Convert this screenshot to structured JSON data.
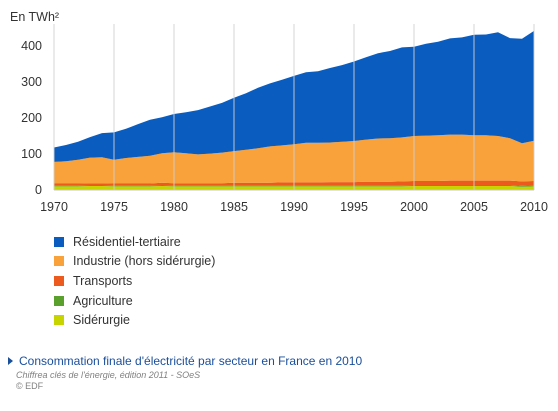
{
  "chart_data": {
    "type": "area",
    "stacked": true,
    "unit_label": "En TWh²",
    "x": [
      1970,
      1971,
      1972,
      1973,
      1974,
      1975,
      1976,
      1977,
      1978,
      1979,
      1980,
      1981,
      1982,
      1983,
      1984,
      1985,
      1986,
      1987,
      1988,
      1989,
      1990,
      1991,
      1992,
      1993,
      1994,
      1995,
      1996,
      1997,
      1998,
      1999,
      2000,
      2001,
      2002,
      2003,
      2004,
      2005,
      2006,
      2007,
      2008,
      2009,
      2010
    ],
    "xticks": [
      1970,
      1975,
      1980,
      1985,
      1990,
      1995,
      2000,
      2005,
      2010
    ],
    "yticks": [
      0,
      100,
      200,
      300,
      400
    ],
    "ylim": [
      0,
      450
    ],
    "xlim": [
      1970,
      2010
    ],
    "grid": "vertical",
    "series": [
      {
        "name": "Sidérurgie",
        "color": "#c8d400",
        "values": [
          10,
          10,
          10,
          11,
          11,
          10,
          10,
          10,
          10,
          11,
          10,
          10,
          10,
          10,
          10,
          10,
          10,
          10,
          10,
          10,
          10,
          10,
          10,
          10,
          10,
          10,
          10,
          10,
          10,
          10,
          11,
          11,
          11,
          11,
          11,
          11,
          11,
          11,
          11,
          9,
          10
        ]
      },
      {
        "name": "Agriculture",
        "color": "#5aa02c",
        "values": [
          3,
          3,
          3,
          3,
          3,
          3,
          3,
          3,
          3,
          3,
          3,
          3,
          3,
          3,
          3,
          3,
          3,
          3,
          3,
          3,
          3,
          3,
          3,
          3,
          3,
          3,
          3,
          3,
          3,
          3,
          3,
          3,
          3,
          3,
          3,
          3,
          3,
          3,
          3,
          3,
          3
        ]
      },
      {
        "name": "Transports",
        "color": "#ec5a1e",
        "values": [
          5,
          5,
          5,
          5,
          5,
          5,
          5,
          5,
          5,
          6,
          6,
          6,
          6,
          6,
          6,
          7,
          7,
          7,
          7,
          8,
          8,
          8,
          8,
          9,
          9,
          9,
          10,
          10,
          10,
          11,
          11,
          11,
          11,
          12,
          12,
          12,
          12,
          12,
          12,
          12,
          12
        ]
      },
      {
        "name": "Industrie (hors sidérurgie)",
        "color": "#f9a13a",
        "values": [
          60,
          62,
          66,
          71,
          72,
          66,
          71,
          74,
          77,
          82,
          86,
          83,
          80,
          82,
          85,
          88,
          92,
          96,
          101,
          103,
          106,
          110,
          110,
          110,
          112,
          114,
          117,
          120,
          121,
          122,
          125,
          126,
          127,
          128,
          128,
          126,
          126,
          124,
          118,
          106,
          112
        ]
      },
      {
        "name": "Résidentiel-tertiaire",
        "color": "#0a5cbf",
        "values": [
          40,
          45,
          50,
          57,
          67,
          76,
          81,
          91,
          100,
          100,
          106,
          114,
          123,
          131,
          138,
          148,
          157,
          168,
          175,
          182,
          190,
          196,
          199,
          207,
          213,
          221,
          229,
          237,
          242,
          250,
          248,
          255,
          260,
          267,
          270,
          279,
          280,
          288,
          278,
          290,
          305
        ]
      }
    ]
  },
  "legend_items": [
    {
      "label": "Résidentiel-tertiaire",
      "color": "#0a5cbf"
    },
    {
      "label": "Industrie (hors sidérurgie)",
      "color": "#f9a13a"
    },
    {
      "label": "Transports",
      "color": "#ec5a1e"
    },
    {
      "label": "Agriculture",
      "color": "#5aa02c"
    },
    {
      "label": "Sidérurgie",
      "color": "#c8d400"
    }
  ],
  "caption": {
    "title": "Consommation finale d'électricité par secteur en France en 2010",
    "source": "Chiffrea clés de l'énergie, édition 2011 - SOeS",
    "copyright": "© EDF"
  }
}
